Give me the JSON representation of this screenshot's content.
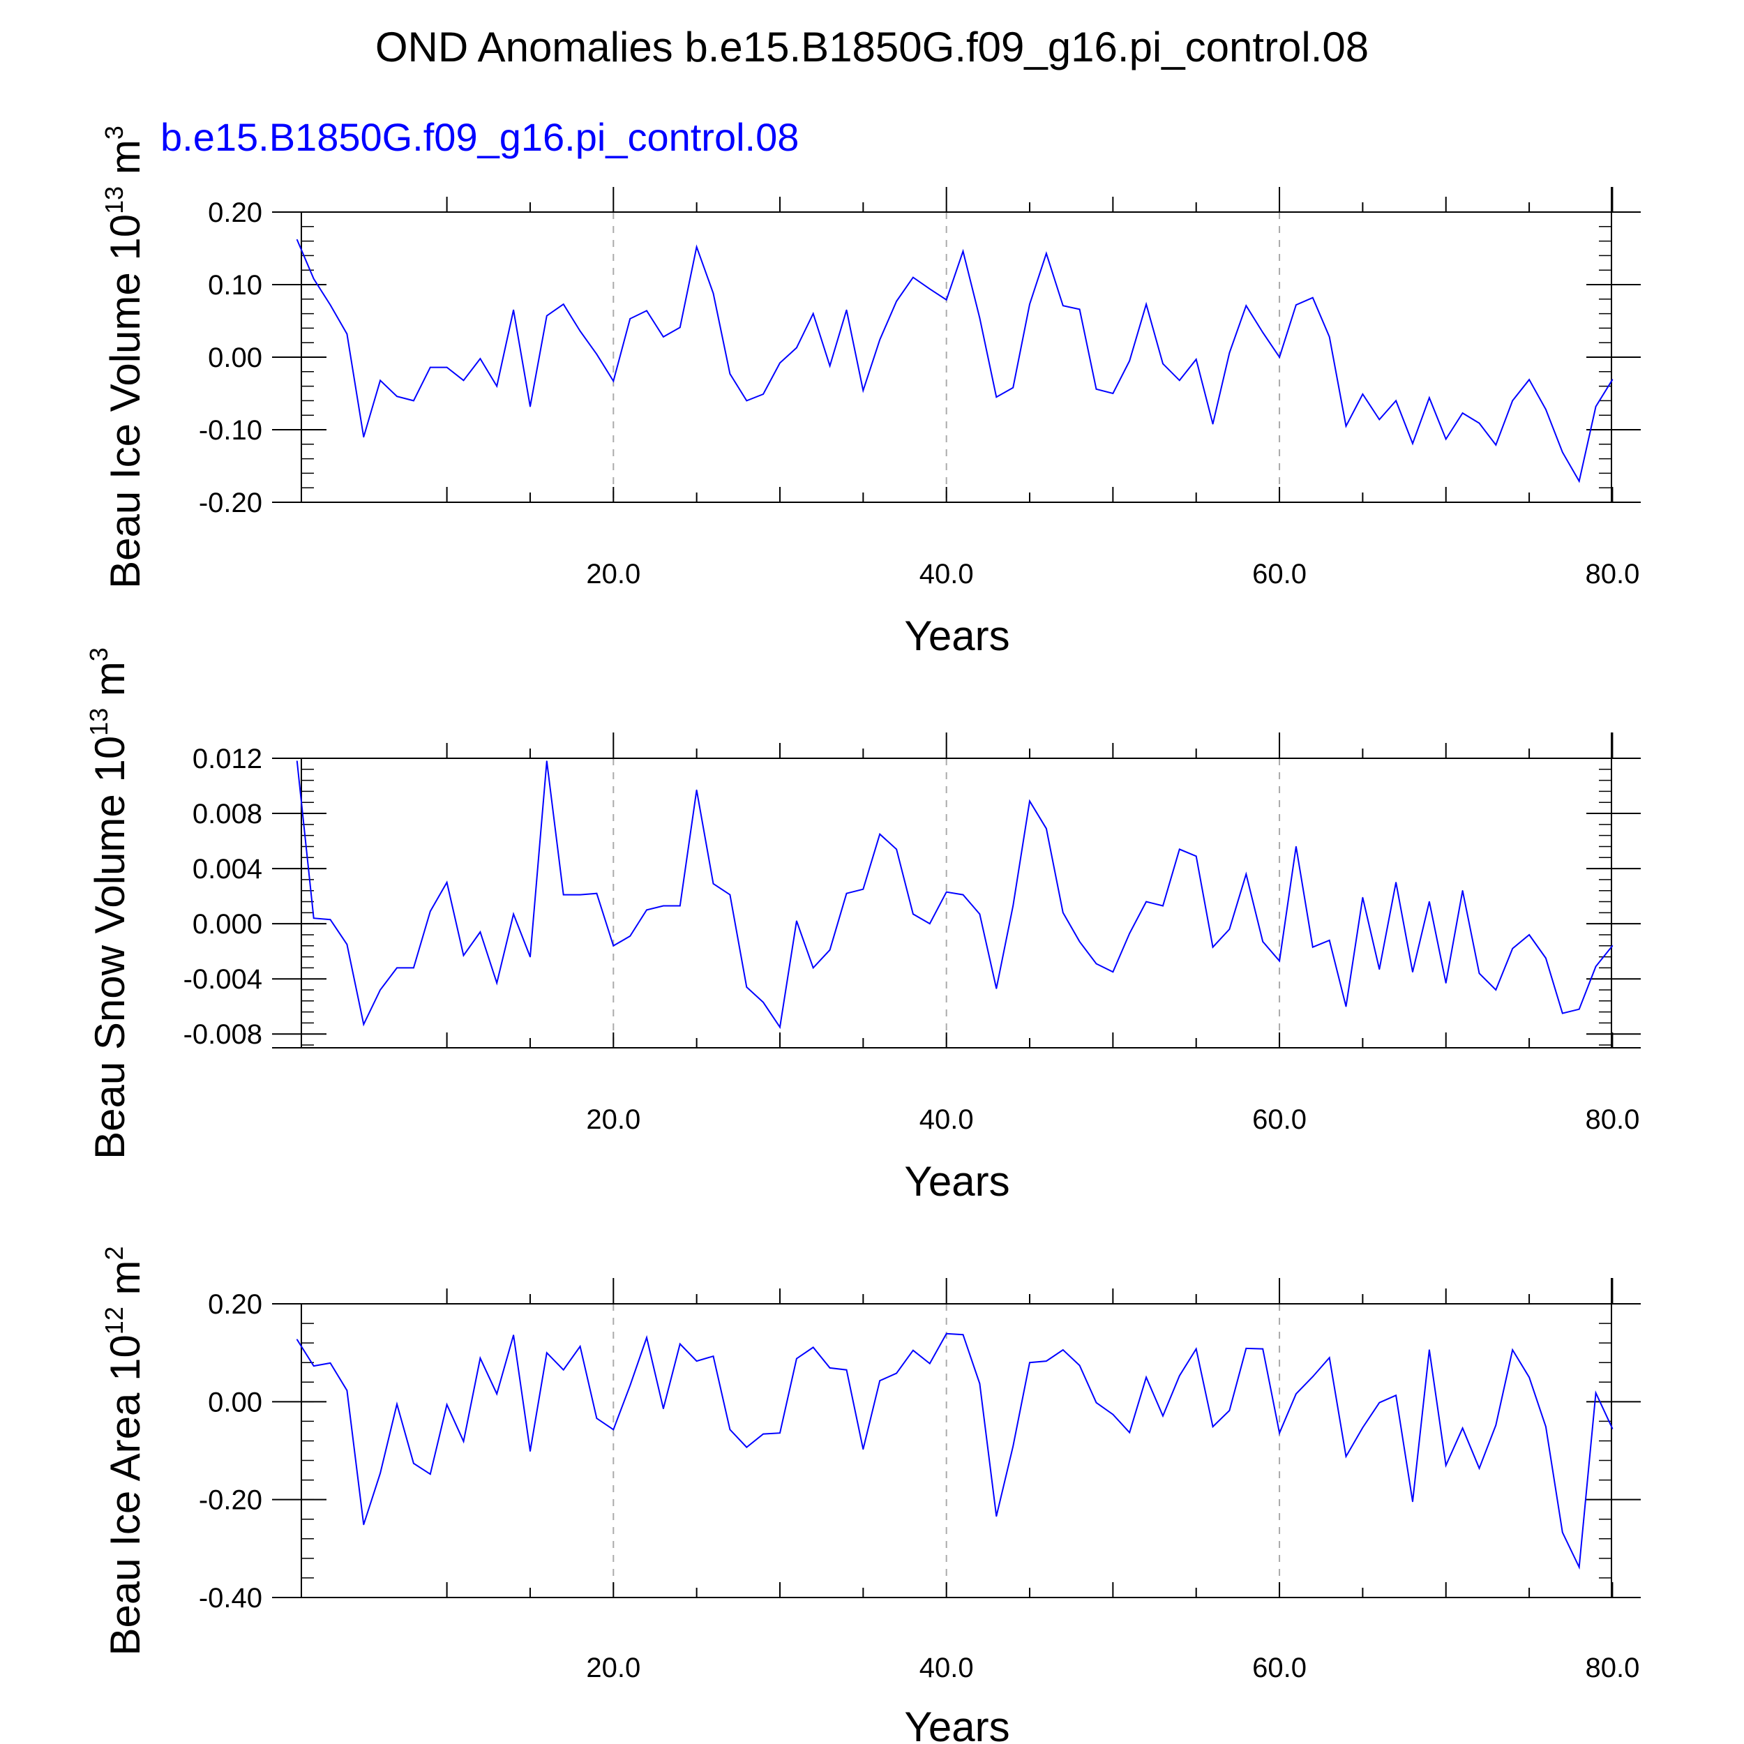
{
  "title": "OND Anomalies b.e15.B1850G.f09_g16.pi_control.08",
  "subtitle": "b.e15.B1850G.f09_g16.pi_control.08",
  "colors": {
    "series": "#0000ff",
    "grid": "#aaaaaa",
    "axes": "#000000",
    "subtitle": "#0000ff"
  },
  "chart_data": [
    {
      "type": "line",
      "ylabel": {
        "text": "Beau Ice Volume 10",
        "exponent": "13",
        "unit": " m",
        "unit_exponent": "3"
      },
      "xlabel": "Years",
      "xlim": [
        -0.5,
        81.7
      ],
      "ylim": [
        -0.2,
        0.2
      ],
      "x_ticks": [
        "20.0",
        "40.0",
        "60.0",
        "80.0"
      ],
      "y_ticks": [
        "0.20",
        "0.10",
        "0.00",
        "-0.10",
        "-0.20"
      ],
      "y_tick_values": [
        0.2,
        0.1,
        0.0,
        -0.1,
        -0.2
      ],
      "x_start": 1,
      "values": [
        0.162,
        0.108,
        0.072,
        0.032,
        -0.11,
        -0.032,
        -0.054,
        -0.06,
        -0.014,
        -0.014,
        -0.032,
        -0.002,
        -0.04,
        0.065,
        -0.068,
        0.057,
        0.073,
        0.036,
        0.004,
        -0.033,
        0.053,
        0.064,
        0.028,
        0.041,
        0.152,
        0.088,
        -0.023,
        -0.06,
        -0.051,
        -0.008,
        0.013,
        0.06,
        -0.012,
        0.065,
        -0.046,
        0.024,
        0.077,
        0.11,
        0.094,
        0.079,
        0.146,
        0.054,
        -0.055,
        -0.042,
        0.073,
        0.143,
        0.071,
        0.066,
        -0.044,
        -0.05,
        -0.005,
        0.073,
        -0.009,
        -0.032,
        -0.003,
        -0.092,
        0.006,
        0.071,
        0.034,
        0.0,
        0.072,
        0.082,
        0.028,
        -0.095,
        -0.051,
        -0.086,
        -0.06,
        -0.119,
        -0.056,
        -0.113,
        -0.077,
        -0.091,
        -0.121,
        -0.06,
        -0.031,
        -0.072,
        -0.131,
        -0.171,
        -0.068,
        -0.031
      ]
    },
    {
      "type": "line",
      "ylabel": {
        "text": "Beau Snow Volume 10",
        "exponent": "13",
        "unit": " m",
        "unit_exponent": "3"
      },
      "xlabel": "Years",
      "xlim": [
        -0.5,
        81.7
      ],
      "ylim": [
        -0.009,
        0.012
      ],
      "x_ticks": [
        "20.0",
        "40.0",
        "60.0",
        "80.0"
      ],
      "y_ticks": [
        "0.012",
        "0.008",
        "0.004",
        "0.000",
        "-0.004",
        "-0.008"
      ],
      "y_tick_values": [
        0.012,
        0.008,
        0.004,
        0.0,
        -0.004,
        -0.008
      ],
      "x_start": 1,
      "values": [
        0.0118,
        0.0004,
        0.0003,
        -0.0015,
        -0.0073,
        -0.0048,
        -0.0032,
        -0.0032,
        0.0009,
        0.003,
        -0.0023,
        -0.0006,
        -0.0043,
        0.0007,
        -0.0024,
        0.0118,
        0.0021,
        0.0021,
        0.0022,
        -0.0016,
        -0.0009,
        0.001,
        0.0013,
        0.0013,
        0.0097,
        0.0029,
        0.0021,
        -0.0046,
        -0.0057,
        -0.0075,
        0.0002,
        -0.0032,
        -0.0019,
        0.0022,
        0.0025,
        0.0065,
        0.0054,
        0.0007,
        0.0,
        0.0023,
        0.0021,
        0.0007,
        -0.0047,
        0.0013,
        0.0089,
        0.0069,
        0.0008,
        -0.0013,
        -0.0029,
        -0.0035,
        -0.0007,
        0.0016,
        0.0013,
        0.0054,
        0.0049,
        -0.0017,
        -0.0004,
        0.0036,
        -0.0013,
        -0.0027,
        0.0056,
        -0.0017,
        -0.0012,
        -0.006,
        0.0019,
        -0.0033,
        0.003,
        -0.0035,
        0.0016,
        -0.0043,
        0.0024,
        -0.0036,
        -0.0048,
        -0.0018,
        -0.0008,
        -0.0025,
        -0.0065,
        -0.0062,
        -0.0031,
        -0.0016
      ]
    },
    {
      "type": "line",
      "ylabel": {
        "text": "Beau Ice Area 10",
        "exponent": "12",
        "unit": " m",
        "unit_exponent": "2"
      },
      "xlabel": "Years",
      "xlim": [
        -0.5,
        81.7
      ],
      "ylim": [
        -0.4,
        0.2
      ],
      "x_ticks": [
        "20.0",
        "40.0",
        "60.0",
        "80.0"
      ],
      "y_ticks": [
        "0.20",
        "0.00",
        "-0.20",
        "-0.40"
      ],
      "y_tick_values": [
        0.2,
        0.0,
        -0.2,
        -0.4
      ],
      "x_start": 1,
      "values": [
        0.127,
        0.073,
        0.079,
        0.023,
        -0.251,
        -0.146,
        -0.005,
        -0.126,
        -0.148,
        -0.006,
        -0.081,
        0.089,
        0.016,
        0.136,
        -0.101,
        0.1,
        0.065,
        0.113,
        -0.034,
        -0.057,
        0.033,
        0.131,
        -0.014,
        0.118,
        0.083,
        0.093,
        -0.057,
        -0.093,
        -0.066,
        -0.064,
        0.088,
        0.111,
        0.069,
        0.065,
        -0.097,
        0.043,
        0.058,
        0.105,
        0.078,
        0.139,
        0.137,
        0.037,
        -0.234,
        -0.091,
        0.08,
        0.083,
        0.106,
        0.074,
        -0.002,
        -0.026,
        -0.063,
        0.05,
        -0.029,
        0.053,
        0.108,
        -0.051,
        -0.018,
        0.109,
        0.108,
        -0.064,
        0.016,
        0.051,
        0.09,
        -0.112,
        -0.053,
        -0.002,
        0.013,
        -0.204,
        0.106,
        -0.13,
        -0.054,
        -0.136,
        -0.048,
        0.106,
        0.05,
        -0.051,
        -0.267,
        -0.338,
        0.018,
        -0.055
      ]
    }
  ]
}
